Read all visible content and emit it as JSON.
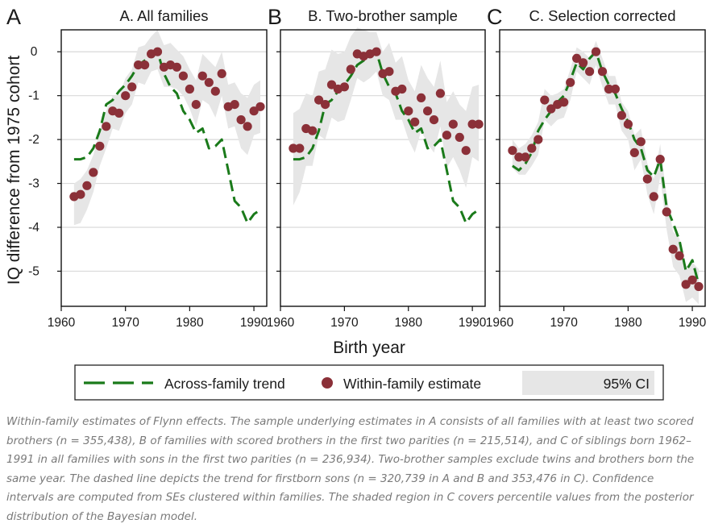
{
  "figure": {
    "y_axis_label": "IQ difference from 1975 cohort",
    "x_axis_label": "Birth year",
    "legend": {
      "trend_label": "Across-family trend",
      "estimate_label": "Within-family estimate",
      "ci_label": "95% CI"
    },
    "colors": {
      "trend": "#1a7a1a",
      "estimate": "#8b3038",
      "ci_band": "#e6e6e6",
      "grid": "#d9d9d9"
    }
  },
  "caption": "Within-family estimates of Flynn effects. The sample underlying estimates in A consists of all families with at least two scored brothers (n = 355,438), B of families with scored brothers in the first two parities (n = 215,514), and C of siblings born 1962–1991 in all families with sons in the first two parities (n = 236,934). Two-brother samples exclude twins and brothers born the same year. The dashed line depicts the trend for firstborn sons (n = 320,739 in A and B and 353,476 in C). Confidence intervals are computed from SEs clustered within families. The shaded region in C covers percentile values from the posterior distribution of the Bayesian model.",
  "chart_data": [
    {
      "type": "line",
      "panel_letter": "A",
      "title": "A. All families",
      "xlim": [
        1960,
        1992
      ],
      "ylim": [
        -5.8,
        0.5
      ],
      "x_ticks": [
        1960,
        1970,
        1980,
        1990
      ],
      "y_ticks": [
        0,
        -1,
        -2,
        -3,
        -4,
        -5
      ],
      "y_tick_labels": [
        "0",
        "-1",
        "-2",
        "-3",
        "-4",
        "-5"
      ],
      "grid": true,
      "trend": {
        "x": [
          1962,
          1963,
          1964,
          1965,
          1966,
          1967,
          1968,
          1969,
          1970,
          1971,
          1972,
          1973,
          1974,
          1975,
          1976,
          1977,
          1978,
          1979,
          1980,
          1981,
          1982,
          1983,
          1984,
          1985,
          1986,
          1987,
          1988,
          1989,
          1990,
          1991
        ],
        "y": [
          -2.45,
          -2.45,
          -2.4,
          -2.2,
          -1.8,
          -1.2,
          -1.1,
          -0.9,
          -0.75,
          -0.55,
          -0.3,
          -0.2,
          -0.1,
          0.0,
          -0.5,
          -0.8,
          -0.95,
          -1.35,
          -1.55,
          -1.85,
          -1.75,
          -2.2,
          -2.15,
          -2.0,
          -2.7,
          -3.4,
          -3.55,
          -3.9,
          -3.7,
          -3.6
        ]
      },
      "estimates": {
        "x": [
          1962,
          1963,
          1964,
          1965,
          1966,
          1967,
          1968,
          1969,
          1970,
          1971,
          1972,
          1973,
          1974,
          1975,
          1976,
          1977,
          1978,
          1979,
          1980,
          1981,
          1982,
          1983,
          1984,
          1985,
          1986,
          1987,
          1988,
          1989,
          1990,
          1991
        ],
        "y": [
          -3.3,
          -3.25,
          -3.05,
          -2.75,
          -2.15,
          -1.7,
          -1.35,
          -1.4,
          -1.0,
          -0.8,
          -0.3,
          -0.3,
          -0.05,
          0.0,
          -0.35,
          -0.3,
          -0.35,
          -0.55,
          -0.85,
          -1.2,
          -0.55,
          -0.7,
          -0.9,
          -0.5,
          -1.25,
          -1.2,
          -1.55,
          -1.7,
          -1.35,
          -1.25
        ]
      },
      "ci_upper": [
        -3.0,
        -2.9,
        -2.7,
        -2.35,
        -1.8,
        -1.35,
        -1.0,
        -1.0,
        -0.6,
        -0.4,
        0.1,
        0.15,
        0.35,
        0.5,
        0.15,
        0.2,
        0.05,
        -0.1,
        -0.4,
        -0.65,
        -0.05,
        -0.2,
        -0.35,
        0.0,
        -0.75,
        -0.7,
        -0.95,
        -1.05,
        -0.75,
        -0.65
      ],
      "ci_lower": [
        -3.95,
        -3.9,
        -3.6,
        -3.2,
        -2.6,
        -2.2,
        -1.75,
        -1.8,
        -1.4,
        -1.2,
        -0.7,
        -0.75,
        -0.45,
        -0.4,
        -0.8,
        -0.8,
        -0.85,
        -1.0,
        -1.3,
        -1.7,
        -1.1,
        -1.2,
        -1.5,
        -1.0,
        -1.75,
        -1.7,
        -2.2,
        -2.35,
        -1.9,
        -1.85
      ]
    },
    {
      "type": "line",
      "panel_letter": "B",
      "title": "B. Two-brother sample",
      "xlim": [
        1960,
        1992
      ],
      "ylim": [
        -5.8,
        0.5
      ],
      "x_ticks": [
        1960,
        1970,
        1980,
        1990
      ],
      "y_ticks": [
        0,
        -1,
        -2,
        -3,
        -4,
        -5
      ],
      "grid": true,
      "trend": {
        "x": [
          1962,
          1963,
          1964,
          1965,
          1966,
          1967,
          1968,
          1969,
          1970,
          1971,
          1972,
          1973,
          1974,
          1975,
          1976,
          1977,
          1978,
          1979,
          1980,
          1981,
          1982,
          1983,
          1984,
          1985,
          1986,
          1987,
          1988,
          1989,
          1990,
          1991
        ],
        "y": [
          -2.45,
          -2.45,
          -2.4,
          -2.2,
          -1.8,
          -1.2,
          -1.1,
          -0.9,
          -0.75,
          -0.55,
          -0.3,
          -0.2,
          -0.1,
          0.0,
          -0.5,
          -0.8,
          -0.95,
          -1.35,
          -1.55,
          -1.85,
          -1.75,
          -2.2,
          -2.15,
          -2.0,
          -2.7,
          -3.4,
          -3.55,
          -3.9,
          -3.7,
          -3.6
        ]
      },
      "estimates": {
        "x": [
          1962,
          1963,
          1964,
          1965,
          1966,
          1967,
          1968,
          1969,
          1970,
          1971,
          1972,
          1973,
          1974,
          1975,
          1976,
          1977,
          1978,
          1979,
          1980,
          1981,
          1982,
          1983,
          1984,
          1985,
          1986,
          1987,
          1988,
          1989,
          1990,
          1991
        ],
        "y": [
          -2.2,
          -2.2,
          -1.75,
          -1.8,
          -1.1,
          -1.2,
          -0.75,
          -0.85,
          -0.8,
          -0.4,
          -0.05,
          -0.1,
          -0.05,
          0.0,
          -0.5,
          -0.45,
          -0.9,
          -0.85,
          -1.35,
          -1.6,
          -1.05,
          -1.35,
          -1.55,
          -0.95,
          -1.9,
          -1.65,
          -1.95,
          -2.25,
          -1.65,
          -1.65
        ]
      },
      "ci_upper": [
        -1.4,
        -1.3,
        -0.95,
        -1.0,
        -0.45,
        -0.4,
        0.05,
        -0.05,
        0.0,
        0.35,
        0.55,
        0.5,
        0.45,
        0.45,
        0.0,
        0.2,
        -0.25,
        -0.1,
        -0.65,
        -0.9,
        -0.3,
        -0.6,
        -0.8,
        -0.2,
        -1.15,
        -0.9,
        -1.2,
        -1.35,
        -0.8,
        -0.75
      ],
      "ci_lower": [
        -3.5,
        -3.2,
        -2.6,
        -2.6,
        -1.9,
        -2.0,
        -1.5,
        -1.6,
        -1.55,
        -1.1,
        -0.6,
        -0.7,
        -0.6,
        -0.45,
        -1.0,
        -1.1,
        -1.55,
        -1.55,
        -2.0,
        -2.3,
        -1.8,
        -2.1,
        -2.3,
        -1.7,
        -2.65,
        -2.4,
        -2.7,
        -3.1,
        -2.4,
        -2.5
      ]
    },
    {
      "type": "line",
      "panel_letter": "C",
      "title": "C. Selection corrected",
      "xlim": [
        1960,
        1992
      ],
      "ylim": [
        -5.8,
        0.5
      ],
      "x_ticks": [
        1960,
        1970,
        1980,
        1990
      ],
      "y_ticks": [
        0,
        -1,
        -2,
        -3,
        -4,
        -5
      ],
      "grid": true,
      "trend": {
        "x": [
          1962,
          1963,
          1964,
          1965,
          1966,
          1967,
          1968,
          1969,
          1970,
          1971,
          1972,
          1973,
          1974,
          1975,
          1976,
          1977,
          1978,
          1979,
          1980,
          1981,
          1982,
          1983,
          1984,
          1985,
          1986,
          1987,
          1988,
          1989,
          1990,
          1991
        ],
        "y": [
          -2.6,
          -2.7,
          -2.55,
          -2.3,
          -1.8,
          -1.55,
          -1.35,
          -1.15,
          -1.0,
          -0.65,
          -0.25,
          -0.4,
          -0.15,
          0.0,
          -0.45,
          -0.75,
          -0.95,
          -1.3,
          -1.6,
          -2.0,
          -2.2,
          -2.7,
          -2.85,
          -2.45,
          -3.55,
          -3.9,
          -4.3,
          -5.0,
          -4.75,
          -5.3
        ]
      },
      "estimates": {
        "x": [
          1962,
          1963,
          1964,
          1965,
          1966,
          1967,
          1968,
          1969,
          1970,
          1971,
          1972,
          1973,
          1974,
          1975,
          1976,
          1977,
          1978,
          1979,
          1980,
          1981,
          1982,
          1983,
          1984,
          1985,
          1986,
          1987,
          1988,
          1989,
          1990,
          1991
        ],
        "y": [
          -2.25,
          -2.4,
          -2.4,
          -2.2,
          -2.0,
          -1.1,
          -1.3,
          -1.2,
          -1.15,
          -0.7,
          -0.15,
          -0.25,
          -0.45,
          0.0,
          -0.45,
          -0.85,
          -0.85,
          -1.45,
          -1.65,
          -2.3,
          -2.05,
          -2.9,
          -3.3,
          -2.45,
          -3.65,
          -4.5,
          -4.65,
          -5.3,
          -5.2,
          -5.35
        ]
      },
      "ci_upper": [
        -2.0,
        -2.2,
        -2.1,
        -1.9,
        -1.6,
        -0.85,
        -1.0,
        -0.95,
        -0.85,
        -0.4,
        0.1,
        0.0,
        -0.15,
        0.25,
        -0.15,
        -0.55,
        -0.55,
        -1.15,
        -1.35,
        -1.9,
        -1.75,
        -2.55,
        -2.9,
        -2.1,
        -3.3,
        -4.1,
        -4.25,
        -4.9,
        -4.8,
        -4.95
      ],
      "ci_lower": [
        -2.65,
        -2.8,
        -2.8,
        -2.6,
        -2.35,
        -1.55,
        -1.7,
        -1.55,
        -1.5,
        -1.1,
        -0.45,
        -0.6,
        -0.75,
        -0.3,
        -0.8,
        -1.2,
        -1.2,
        -1.8,
        -2.0,
        -2.7,
        -2.45,
        -3.25,
        -3.7,
        -2.85,
        -4.05,
        -4.9,
        -5.1,
        -5.7,
        -5.6,
        -5.75
      ]
    }
  ]
}
